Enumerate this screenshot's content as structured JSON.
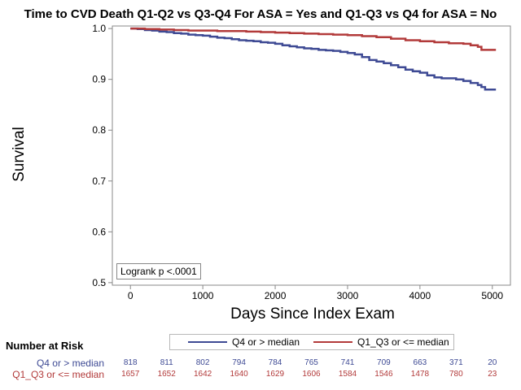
{
  "chart_data": {
    "type": "line",
    "title": "Time to CVD Death Q1-Q2 vs Q3-Q4 For ASA = Yes and Q1-Q3 vs Q4 for ASA = No",
    "xlabel": "Days Since Index Exam",
    "ylabel": "Survival",
    "xlim": [
      -250,
      5250
    ],
    "ylim": [
      0.495,
      1.005
    ],
    "x_ticks": [
      "0",
      "1000",
      "2000",
      "3000",
      "4000",
      "5000"
    ],
    "y_ticks": [
      "0.5",
      "0.6",
      "0.7",
      "0.8",
      "0.9",
      "1.0"
    ],
    "grid": false,
    "step": true,
    "series": [
      {
        "name": "Q4 or > median",
        "color": "#3e4a94",
        "x": [
          0,
          100,
          200,
          300,
          400,
          500,
          600,
          700,
          800,
          900,
          1000,
          1100,
          1200,
          1300,
          1400,
          1500,
          1600,
          1700,
          1800,
          1900,
          2000,
          2100,
          2200,
          2300,
          2400,
          2500,
          2600,
          2700,
          2800,
          2900,
          3000,
          3100,
          3200,
          3300,
          3400,
          3500,
          3600,
          3700,
          3800,
          3900,
          4000,
          4100,
          4200,
          4300,
          4400,
          4500,
          4600,
          4700,
          4800,
          4850,
          4900,
          5050
        ],
        "y": [
          1.0,
          0.999,
          0.997,
          0.996,
          0.994,
          0.993,
          0.991,
          0.99,
          0.988,
          0.987,
          0.986,
          0.984,
          0.982,
          0.981,
          0.979,
          0.977,
          0.976,
          0.975,
          0.973,
          0.972,
          0.97,
          0.967,
          0.965,
          0.963,
          0.961,
          0.96,
          0.958,
          0.957,
          0.956,
          0.954,
          0.952,
          0.949,
          0.944,
          0.938,
          0.935,
          0.932,
          0.928,
          0.924,
          0.919,
          0.916,
          0.913,
          0.908,
          0.904,
          0.902,
          0.902,
          0.9,
          0.897,
          0.893,
          0.889,
          0.885,
          0.88,
          0.88
        ]
      },
      {
        "name": "Q1_Q3 or <= median",
        "color": "#b23a3a",
        "x": [
          0,
          200,
          400,
          600,
          800,
          1000,
          1200,
          1400,
          1600,
          1800,
          2000,
          2200,
          2400,
          2600,
          2800,
          3000,
          3200,
          3400,
          3600,
          3800,
          4000,
          4200,
          4400,
          4600,
          4700,
          4800,
          4850,
          5050
        ],
        "y": [
          1.0,
          0.999,
          0.998,
          0.997,
          0.996,
          0.996,
          0.995,
          0.995,
          0.994,
          0.993,
          0.992,
          0.991,
          0.99,
          0.989,
          0.988,
          0.987,
          0.985,
          0.983,
          0.98,
          0.977,
          0.975,
          0.973,
          0.971,
          0.97,
          0.967,
          0.964,
          0.958,
          0.958
        ]
      }
    ],
    "annotation": "Logrank p <.0001",
    "legend_position": "bottom"
  },
  "risk_table": {
    "title": "Number at Risk",
    "x": [
      0,
      500,
      1000,
      1500,
      2000,
      2500,
      3000,
      3500,
      4000,
      4500,
      5000
    ],
    "rows": [
      {
        "label": "Q4 or > median",
        "color": "#3e4a94",
        "values": [
          "818",
          "811",
          "802",
          "794",
          "784",
          "765",
          "741",
          "709",
          "663",
          "371",
          "20"
        ]
      },
      {
        "label": "Q1_Q3 or <= median",
        "color": "#b23a3a",
        "values": [
          "1657",
          "1652",
          "1642",
          "1640",
          "1629",
          "1606",
          "1584",
          "1546",
          "1478",
          "780",
          "23"
        ]
      }
    ]
  }
}
